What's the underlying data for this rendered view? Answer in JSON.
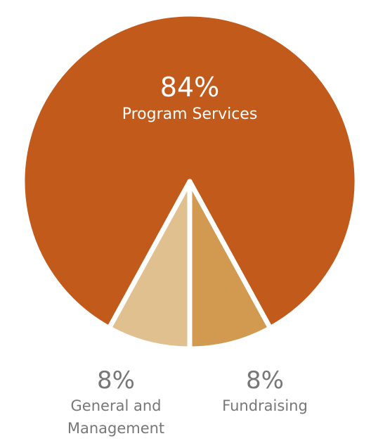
{
  "chart_data": {
    "type": "pie",
    "slices": [
      {
        "label": "Program Services",
        "value": 84,
        "display": "84%",
        "color": "#C15A1A"
      },
      {
        "label": "Fundraising",
        "value": 8,
        "display": "8%",
        "color": "#E1C08F"
      },
      {
        "label": "General and Management",
        "label_lines": [
          "General and",
          "Management"
        ],
        "value": 8,
        "display": "8%",
        "color": "#D29A50"
      }
    ],
    "separator_color": "#ffffff",
    "label_color": "#777777"
  }
}
